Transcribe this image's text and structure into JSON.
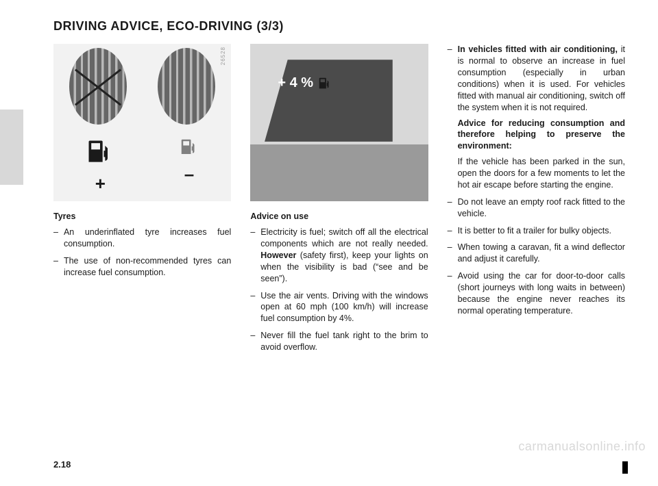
{
  "title": "DRIVING ADVICE, ECO-DRIVING (3/3)",
  "page_number": "2.18",
  "watermark": "carmanualsonline.info",
  "figure_left": {
    "id": "26528",
    "pump_big_color": "#1a1a1a",
    "pump_small_color": "#808080",
    "plus_sign": "+",
    "minus_sign": "–",
    "bg": "#f2f2f2"
  },
  "figure_right": {
    "id": "31077",
    "overlay_text": "+ 4 %",
    "pump_color": "#1a1a1a",
    "bg": "#f2f2f2"
  },
  "col1": {
    "heading": "Tyres",
    "items": [
      "An underinflated tyre increases fuel consumption.",
      "The use of non-recommended tyres can increase fuel consumption."
    ]
  },
  "col2": {
    "heading": "Advice on use",
    "items": [
      "Electricity is fuel; switch off all the electrical components which are not really needed. <b>However</b> (safety first), keep your lights on when the visibility is bad (“see and be seen”).",
      "Use the air vents. Driving with the windows open at 60 mph (100 km/h) will increase fuel consumption by 4%.",
      "Never fill the fuel tank right to the brim to avoid overflow."
    ]
  },
  "col3": {
    "lead_item_html": "<b>In vehicles fitted with air conditioning,</b> it is normal to observe an increase in fuel consumption (especially in urban conditions) when it is used. For vehicles fitted with manual air conditioning, switch off the system when it is not required.",
    "advice_heading": "Advice for reducing consumption and therefore helping to preserve the environment:",
    "advice_body": "If the vehicle has been parked in the sun, open the doors for a few moments to let the hot air escape before starting the engine.",
    "items": [
      "Do not leave an empty roof rack fitted to the vehicle.",
      "It is better to fit a trailer for bulky objects.",
      "When towing a caravan, fit a wind deflector and adjust it carefully.",
      "Avoid using the car for door-to-door calls (short journeys with long waits in between) because the engine never reaches its normal operating temperature."
    ]
  }
}
